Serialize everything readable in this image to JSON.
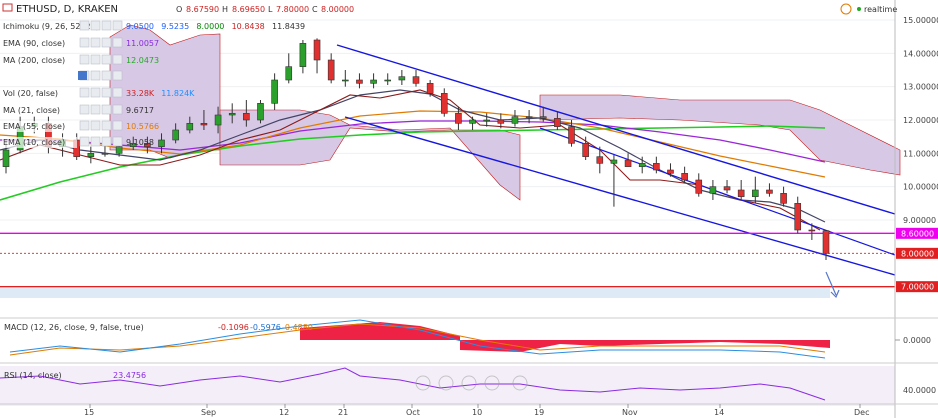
{
  "header": {
    "symbol": "ETHUSD, D, KRAKEN",
    "o_label": "O",
    "o_value": "8.67590",
    "h_label": "H",
    "h_value": "8.69650",
    "l_label": "L",
    "l_value": "7.80000",
    "c_label": "C",
    "c_value": "8.00000",
    "realtime": "realtime"
  },
  "indicators": [
    {
      "label": "Ichimoku (9, 26, 52, 26)",
      "values": [
        "9.0500",
        "9.5235",
        "8.0000",
        "10.8438",
        "11.8439"
      ],
      "colors": [
        "#2060ff",
        "#2060ff",
        "#008800",
        "#cc2222",
        "#333333"
      ]
    },
    {
      "label": "EMA (90, close)",
      "values": [
        "11.0057"
      ],
      "colors": [
        "#8a2be2"
      ]
    },
    {
      "label": "MA (200, close)",
      "values": [
        "12.0473"
      ],
      "colors": [
        "#22aa22"
      ]
    },
    {
      "label": "",
      "values": [],
      "colors": []
    },
    {
      "label": "Vol (20, false)",
      "values": [
        "33.28K",
        "11.824K"
      ],
      "colors": [
        "#cc2222",
        "#1e90ff"
      ]
    },
    {
      "label": "MA (21, close)",
      "values": [
        "9.6717"
      ],
      "colors": [
        "#333333"
      ]
    },
    {
      "label": "EMA (55, close)",
      "values": [
        "10.5766"
      ],
      "colors": [
        "#e07b00"
      ]
    },
    {
      "label": "EMA (10, close)",
      "values": [
        "9.1058"
      ],
      "colors": [
        "#333333"
      ]
    }
  ],
  "price_axis": {
    "ticks": [
      "15.00000",
      "14.00000",
      "13.00000",
      "12.00000",
      "11.00000",
      "10.00000",
      "9.00000"
    ]
  },
  "price_tags": [
    {
      "value": "8.60000",
      "color": "#ee00ee"
    },
    {
      "value": "8.00000",
      "color": "#e02020"
    },
    {
      "value": "7.00000",
      "color": "#e02020"
    }
  ],
  "x_axis": {
    "ticks": [
      "15",
      "Sep",
      "12",
      "21",
      "Oct",
      "10",
      "19",
      "Nov",
      "14",
      "Dec"
    ]
  },
  "macd": {
    "label": "MACD (12, 26, close, 9, false, true)",
    "values": [
      "-0.1096",
      "-0.5976",
      "-0.4880"
    ],
    "axis_tick": "0.0000"
  },
  "rsi": {
    "label": "RSI (14, close)",
    "value": "23.4756",
    "axis_tick": "40.0000"
  },
  "chart_data": {
    "type": "candlestick",
    "series": [
      {
        "name": "ETHUSD",
        "dates": [
          "Aug-06",
          "Aug-08",
          "Aug-10",
          "Aug-12",
          "Aug-14",
          "Aug-16",
          "Aug-18",
          "Aug-20",
          "Aug-22",
          "Aug-24",
          "Aug-26",
          "Aug-28",
          "Aug-30",
          "Sep-01",
          "Sep-03",
          "Sep-05",
          "Sep-07",
          "Sep-09",
          "Sep-11",
          "Sep-13",
          "Sep-15",
          "Sep-17",
          "Sep-19",
          "Sep-21",
          "Sep-23",
          "Sep-25",
          "Sep-27",
          "Sep-29",
          "Oct-01",
          "Oct-03",
          "Oct-05",
          "Oct-07",
          "Oct-09",
          "Oct-11",
          "Oct-13",
          "Oct-15",
          "Oct-17",
          "Oct-19",
          "Oct-21",
          "Oct-23",
          "Oct-25",
          "Oct-27",
          "Oct-29",
          "Oct-31",
          "Nov-02",
          "Nov-04",
          "Nov-06",
          "Nov-08",
          "Nov-10",
          "Nov-12",
          "Nov-14",
          "Nov-16",
          "Nov-18",
          "Nov-20",
          "Nov-22",
          "Nov-24",
          "Nov-26",
          "Nov-28",
          "Nov-30"
        ],
        "open": [
          10.6,
          11.1,
          11.8,
          11.9,
          11.2,
          11.4,
          10.9,
          11.0,
          11.0,
          11.2,
          11.3,
          11.2,
          11.4,
          11.7,
          11.9,
          11.85,
          12.15,
          12.2,
          12.0,
          12.5,
          13.2,
          13.6,
          14.4,
          13.8,
          13.2,
          13.2,
          13.1,
          13.2,
          13.2,
          13.3,
          13.1,
          12.8,
          12.2,
          11.9,
          12.0,
          12.0,
          11.9,
          12.1,
          12.1,
          12.05,
          11.8,
          11.3,
          10.9,
          10.7,
          10.8,
          10.6,
          10.7,
          10.5,
          10.4,
          10.2,
          9.8,
          10.0,
          9.9,
          9.7,
          9.9,
          9.8,
          9.5,
          8.7,
          8.68
        ],
        "high": [
          11.4,
          12.1,
          12.1,
          12.1,
          11.6,
          11.6,
          11.2,
          11.3,
          11.4,
          11.5,
          11.5,
          11.6,
          11.9,
          12.1,
          12.3,
          12.4,
          12.5,
          12.6,
          12.6,
          13.4,
          14.0,
          14.4,
          14.45,
          14.0,
          13.5,
          13.4,
          13.4,
          13.4,
          13.5,
          13.5,
          13.2,
          12.95,
          12.4,
          12.1,
          12.2,
          12.2,
          12.3,
          12.3,
          12.4,
          12.25,
          12.0,
          11.5,
          11.2,
          10.95,
          11.0,
          10.9,
          10.9,
          10.7,
          10.6,
          10.4,
          10.2,
          10.2,
          10.2,
          10.3,
          10.1,
          10.0,
          9.7,
          8.9,
          8.7
        ],
        "low": [
          10.4,
          11.0,
          11.6,
          11.0,
          10.9,
          10.8,
          10.7,
          10.9,
          10.9,
          11.1,
          11.0,
          11.0,
          11.3,
          11.6,
          11.7,
          11.6,
          11.9,
          11.8,
          11.9,
          12.3,
          13.1,
          13.4,
          13.4,
          13.1,
          13.0,
          12.95,
          12.95,
          13.05,
          13.05,
          13.0,
          12.7,
          12.1,
          11.7,
          11.7,
          11.8,
          11.75,
          11.8,
          11.9,
          11.95,
          11.7,
          11.2,
          10.8,
          10.4,
          9.4,
          10.6,
          10.4,
          10.4,
          10.3,
          10.1,
          9.7,
          9.6,
          9.8,
          9.6,
          9.5,
          9.7,
          9.4,
          8.6,
          8.4,
          7.8
        ],
        "close": [
          11.1,
          11.8,
          11.9,
          11.2,
          11.4,
          10.9,
          11.0,
          11.0,
          11.2,
          11.3,
          11.2,
          11.4,
          11.7,
          11.9,
          11.85,
          12.15,
          12.2,
          12.0,
          12.5,
          13.2,
          13.6,
          14.3,
          13.8,
          13.2,
          13.2,
          13.1,
          13.2,
          13.2,
          13.3,
          13.1,
          12.8,
          12.2,
          11.9,
          12.0,
          12.0,
          11.9,
          12.1,
          12.1,
          12.05,
          11.8,
          11.3,
          10.9,
          10.7,
          10.8,
          10.6,
          10.7,
          10.5,
          10.4,
          10.2,
          9.8,
          10.0,
          9.9,
          9.7,
          9.9,
          9.8,
          9.5,
          8.7,
          8.68,
          8.0
        ]
      }
    ],
    "ylim": [
      6.6,
      15.6
    ],
    "y_ticks": [
      15,
      14,
      13,
      12,
      11,
      10,
      9
    ],
    "horizontal_levels": [
      8.6,
      8.0,
      7.0
    ]
  }
}
